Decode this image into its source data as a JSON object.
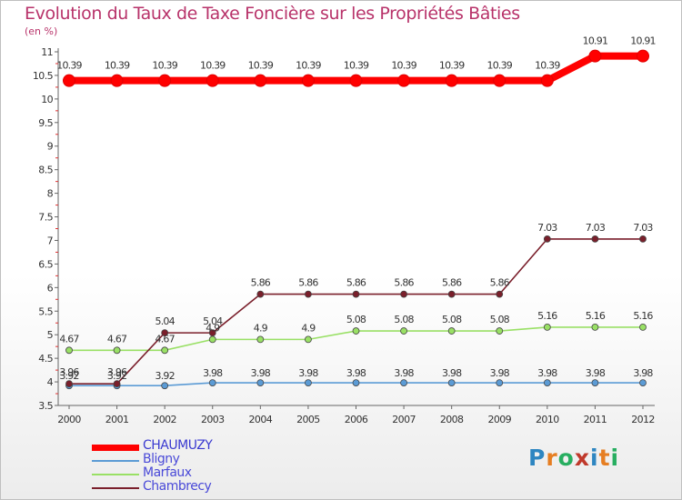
{
  "title": "Evolution du Taux de Taxe Foncière sur les Propriétés Bâties",
  "unit": "(en %)",
  "logo_letters": [
    "P",
    "r",
    "o",
    "x",
    "i",
    "t",
    "i"
  ],
  "logo_colors": [
    "#2e86c1",
    "#e67e22",
    "#27ae60",
    "#c0392b",
    "#2e86c1",
    "#e67e22",
    "#27ae60"
  ],
  "chart_data": {
    "type": "line",
    "title": "Evolution du Taux de Taxe Foncière sur les Propriétés Bâties",
    "ylabel": "(en %)",
    "xlabel": "",
    "categories": [
      "2000",
      "2001",
      "2002",
      "2003",
      "2004",
      "2005",
      "2006",
      "2007",
      "2008",
      "2009",
      "2010",
      "2011",
      "2012"
    ],
    "y_ticks": [
      "3.5",
      "4",
      "4.5",
      "5",
      "5.5",
      "6",
      "6.5",
      "7",
      "7.5",
      "8",
      "8.5",
      "9",
      "9.5",
      "10",
      "10.5",
      "11"
    ],
    "ylim": [
      3.5,
      11
    ],
    "legend_position": "bottom-left",
    "grid": false,
    "series": [
      {
        "name": "CHAUMUZY",
        "color": "#ff0000",
        "values": [
          10.39,
          10.39,
          10.39,
          10.39,
          10.39,
          10.39,
          10.39,
          10.39,
          10.39,
          10.39,
          10.39,
          10.91,
          10.91
        ],
        "labels": [
          "10.39",
          "10.39",
          "10.39",
          "10.39",
          "10.39",
          "10.39",
          "10.39",
          "10.39",
          "10.39",
          "10.39",
          "10.39",
          "10.91",
          "10.91"
        ]
      },
      {
        "name": "Bligny",
        "color": "#5b9bd5",
        "values": [
          3.92,
          3.92,
          3.92,
          3.98,
          3.98,
          3.98,
          3.98,
          3.98,
          3.98,
          3.98,
          3.98,
          3.98,
          3.98
        ],
        "labels": [
          "3.92",
          "3.92",
          "3.92",
          "3.98",
          "3.98",
          "3.98",
          "3.98",
          "3.98",
          "3.98",
          "3.98",
          "3.98",
          "3.98",
          "3.98"
        ]
      },
      {
        "name": "Marfaux",
        "color": "#99e065",
        "values": [
          4.67,
          4.67,
          4.67,
          4.9,
          4.9,
          4.9,
          5.08,
          5.08,
          5.08,
          5.08,
          5.16,
          5.16,
          5.16
        ],
        "labels": [
          "4.67",
          "4.67",
          "4.67",
          "4.9",
          "4.9",
          "4.9",
          "5.08",
          "5.08",
          "5.08",
          "5.08",
          "5.16",
          "5.16",
          "5.16"
        ]
      },
      {
        "name": "Chambrecy",
        "color": "#7a1f2b",
        "values": [
          3.96,
          3.96,
          5.04,
          5.04,
          5.86,
          5.86,
          5.86,
          5.86,
          5.86,
          5.86,
          7.03,
          7.03,
          7.03
        ],
        "labels": [
          "3.96",
          "3.96",
          "5.04",
          "5.04",
          "5.86",
          "5.86",
          "5.86",
          "5.86",
          "5.86",
          "5.86",
          "7.03",
          "7.03",
          "7.03"
        ]
      }
    ]
  }
}
